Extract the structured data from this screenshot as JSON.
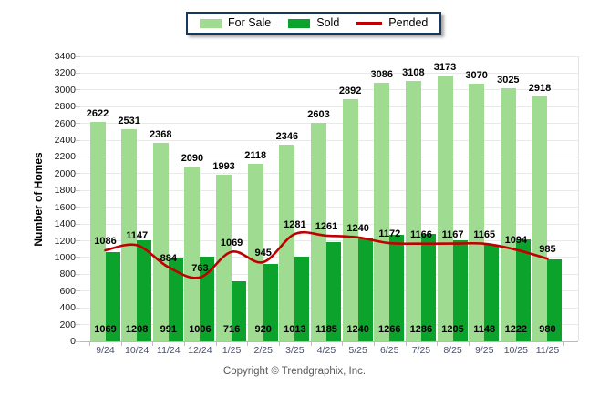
{
  "legend": {
    "items": [
      {
        "label": "For Sale",
        "type": "swatch",
        "color": "#9FDB90"
      },
      {
        "label": "Sold",
        "type": "swatch",
        "color": "#0CA32C"
      },
      {
        "label": "Pended",
        "type": "line",
        "color": "#C00000"
      }
    ]
  },
  "ylabel": "Number of Homes",
  "footer": "Copyright © Trendgraphix, Inc.",
  "colors": {
    "for_sale": "#9FDB90",
    "sold": "#0CA32C",
    "pended": "#C00000",
    "grid": "#E9E9E9",
    "axis": "#B9B9B9",
    "legend_border": "#17375E",
    "x_label": "#454F72",
    "value_label": "#000000",
    "footer_text": "#595959"
  },
  "chart_data": {
    "type": "bar",
    "title": "",
    "ylabel": "Number of Homes",
    "xlabel": "",
    "ylim": [
      0,
      3400
    ],
    "ytick_step": 200,
    "grid": true,
    "legend_position": "top-center",
    "categories": [
      "9/24",
      "10/24",
      "11/24",
      "12/24",
      "1/25",
      "2/25",
      "3/25",
      "4/25",
      "5/25",
      "6/25",
      "7/25",
      "8/25",
      "9/25",
      "10/25",
      "11/25"
    ],
    "series": [
      {
        "name": "For Sale",
        "type": "bar",
        "color": "#9FDB90",
        "values": [
          2622,
          2531,
          2368,
          2090,
          1993,
          2118,
          2346,
          2603,
          2892,
          3086,
          3108,
          3173,
          3070,
          3025,
          2918
        ]
      },
      {
        "name": "Sold",
        "type": "bar",
        "color": "#0CA32C",
        "values": [
          1069,
          1208,
          991,
          1006,
          716,
          920,
          1013,
          1185,
          1240,
          1266,
          1286,
          1205,
          1148,
          1222,
          980
        ]
      },
      {
        "name": "Pended",
        "type": "line",
        "color": "#C00000",
        "values": [
          1086,
          1147,
          884,
          763,
          1069,
          945,
          1281,
          1261,
          1240,
          1172,
          1166,
          1167,
          1165,
          1094,
          985
        ]
      }
    ]
  }
}
